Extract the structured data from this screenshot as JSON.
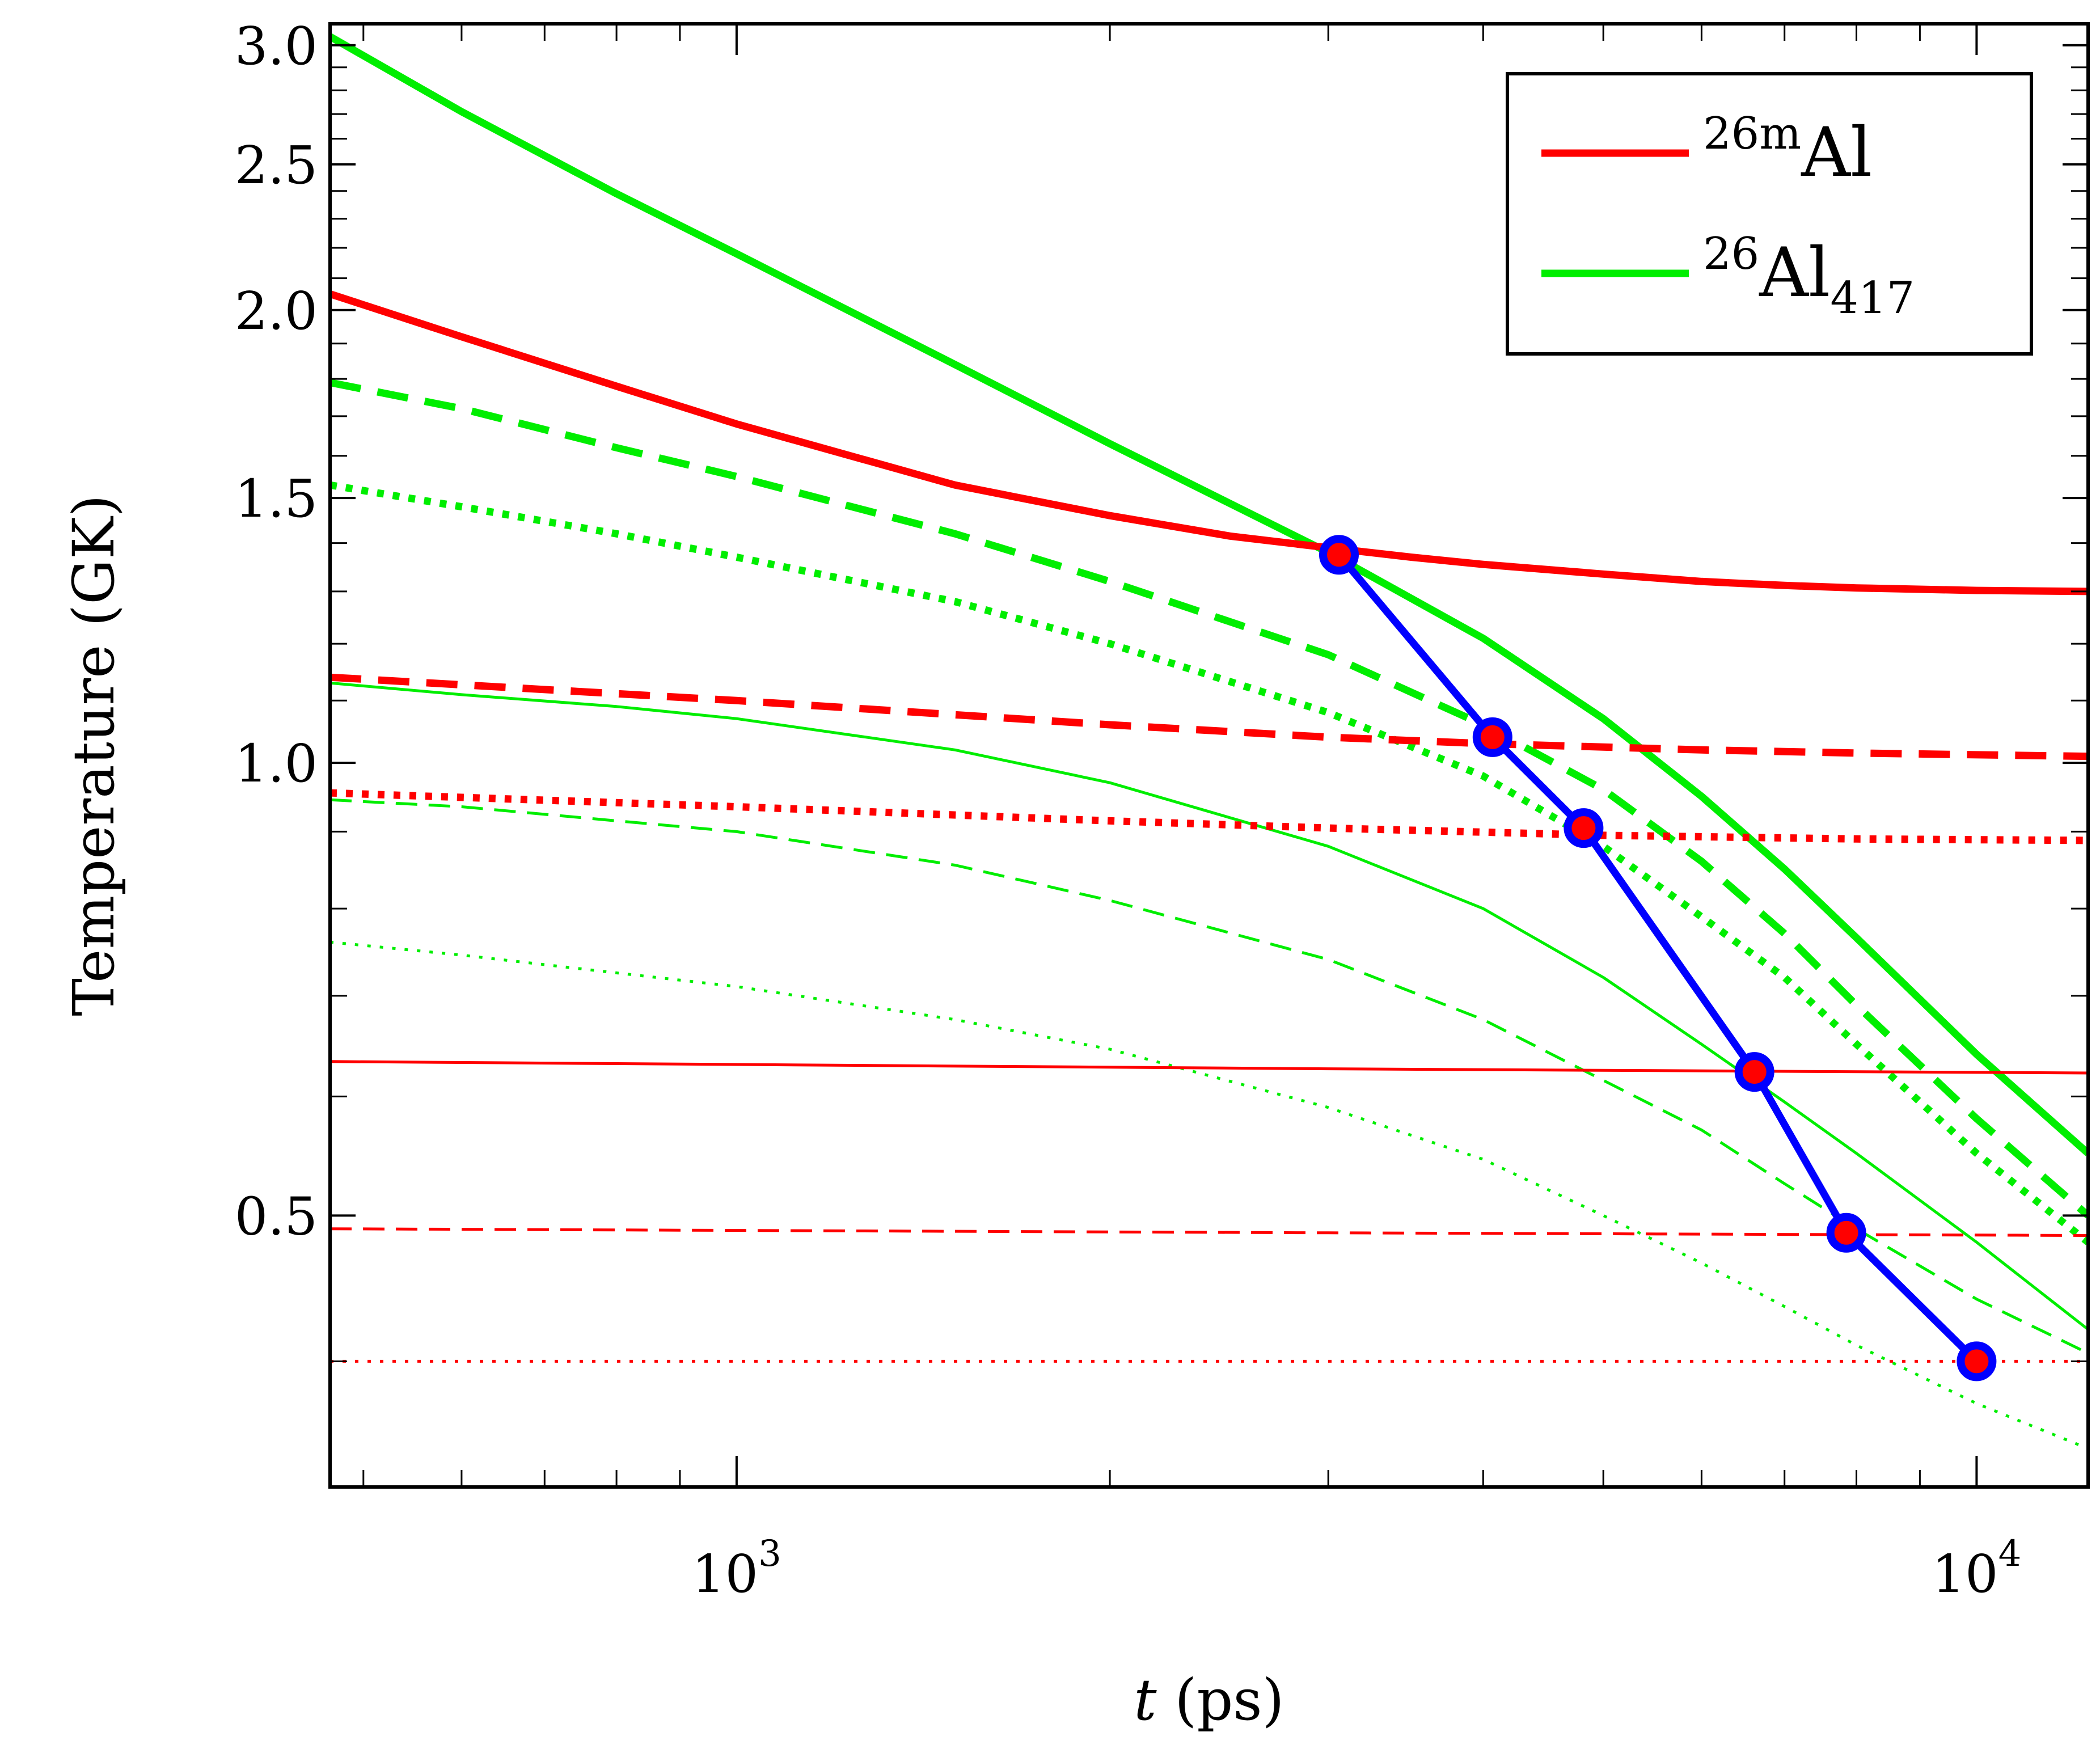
{
  "colors": {
    "red": "#ff0000",
    "green": "#00ee00",
    "blue": "#0000ff",
    "axis": "#000000"
  },
  "chart_data": {
    "type": "line",
    "xscale": "log",
    "yscale": "log",
    "xlim": [
      470,
      12300
    ],
    "ylim": [
      0.33,
      3.1
    ],
    "xlabel": {
      "var": "t",
      "unit": " (ps)"
    },
    "ylabel": "Temperature (GK)",
    "x_ticks": [
      {
        "value": 1000,
        "base": "10",
        "exp": "3"
      },
      {
        "value": 10000,
        "base": "10",
        "exp": "4"
      }
    ],
    "y_ticks": [
      {
        "value": 0.5,
        "label": "0.5"
      },
      {
        "value": 1.0,
        "label": "1.0"
      },
      {
        "value": 1.5,
        "label": "1.5"
      },
      {
        "value": 2.0,
        "label": "2.0"
      },
      {
        "value": 2.5,
        "label": "2.5"
      },
      {
        "value": 3.0,
        "label": "3.0"
      }
    ],
    "legend": {
      "position": "top-right",
      "entries": [
        {
          "series": "26mAl",
          "color": "#ff0000",
          "pre": "26m",
          "base": "Al",
          "sub": ""
        },
        {
          "series": "26Al417",
          "color": "#00ee00",
          "pre": "26",
          "base": "Al",
          "sub": "417"
        }
      ]
    },
    "series": [
      {
        "name": "26mAl-1",
        "color": "#ff0000",
        "style": "solid",
        "weight": "thick",
        "x": [
          470,
          600,
          800,
          1000,
          1500,
          2000,
          2500,
          3000,
          3500,
          4000,
          5000,
          6000,
          7000,
          8000,
          10000,
          12300
        ],
        "y": [
          2.05,
          1.92,
          1.78,
          1.68,
          1.53,
          1.46,
          1.415,
          1.39,
          1.37,
          1.355,
          1.335,
          1.32,
          1.312,
          1.307,
          1.302,
          1.3
        ]
      },
      {
        "name": "26mAl-2",
        "color": "#ff0000",
        "style": "dashed",
        "weight": "thick",
        "x": [
          470,
          1000,
          2000,
          3000,
          4000,
          6000,
          8000,
          12300
        ],
        "y": [
          1.14,
          1.1,
          1.06,
          1.04,
          1.03,
          1.02,
          1.015,
          1.01
        ]
      },
      {
        "name": "26mAl-3",
        "color": "#ff0000",
        "style": "dotted",
        "weight": "thick",
        "x": [
          470,
          1000,
          2000,
          3000,
          5000,
          8000,
          12300
        ],
        "y": [
          0.955,
          0.935,
          0.915,
          0.905,
          0.895,
          0.89,
          0.888
        ]
      },
      {
        "name": "26mAl-4",
        "color": "#ff0000",
        "style": "solid",
        "weight": "thin",
        "x": [
          470,
          3000,
          12300
        ],
        "y": [
          0.633,
          0.626,
          0.622
        ]
      },
      {
        "name": "26mAl-5",
        "color": "#ff0000",
        "style": "dashed",
        "weight": "thin",
        "x": [
          470,
          3000,
          12300
        ],
        "y": [
          0.49,
          0.487,
          0.485
        ]
      },
      {
        "name": "26mAl-6",
        "color": "#ff0000",
        "style": "dotted",
        "weight": "thin",
        "x": [
          470,
          12300
        ],
        "y": [
          0.4,
          0.4
        ]
      },
      {
        "name": "26Al417-1",
        "color": "#00ee00",
        "style": "solid",
        "weight": "thick",
        "x": [
          470,
          600,
          800,
          1000,
          1500,
          2000,
          3000,
          4000,
          5000,
          6000,
          7000,
          8000,
          10000,
          12300
        ],
        "y": [
          3.04,
          2.71,
          2.39,
          2.18,
          1.84,
          1.63,
          1.38,
          1.21,
          1.07,
          0.95,
          0.85,
          0.765,
          0.64,
          0.55
        ]
      },
      {
        "name": "26Al417-2",
        "color": "#00ee00",
        "style": "dashed",
        "weight": "thick",
        "x": [
          470,
          600,
          800,
          1000,
          1500,
          2000,
          3000,
          4000,
          5000,
          6000,
          7000,
          8000,
          10000,
          12300
        ],
        "y": [
          1.79,
          1.72,
          1.62,
          1.55,
          1.42,
          1.32,
          1.18,
          1.06,
          0.96,
          0.86,
          0.77,
          0.69,
          0.58,
          0.5
        ]
      },
      {
        "name": "26Al417-3",
        "color": "#00ee00",
        "style": "dotted",
        "weight": "thick",
        "x": [
          470,
          600,
          800,
          1000,
          1500,
          2000,
          3000,
          4000,
          5000,
          6000,
          7000,
          8000,
          10000,
          12300
        ],
        "y": [
          1.53,
          1.48,
          1.42,
          1.37,
          1.28,
          1.2,
          1.08,
          0.98,
          0.88,
          0.79,
          0.72,
          0.65,
          0.55,
          0.48
        ]
      },
      {
        "name": "26Al417-4",
        "color": "#00ee00",
        "style": "solid",
        "weight": "thin",
        "x": [
          470,
          600,
          800,
          1000,
          1500,
          2000,
          3000,
          4000,
          5000,
          6000,
          7000,
          8000,
          10000,
          12300
        ],
        "y": [
          1.13,
          1.11,
          1.09,
          1.07,
          1.02,
          0.97,
          0.88,
          0.8,
          0.72,
          0.65,
          0.595,
          0.55,
          0.48,
          0.42
        ]
      },
      {
        "name": "26Al417-5",
        "color": "#00ee00",
        "style": "dashed",
        "weight": "thin",
        "x": [
          470,
          600,
          800,
          1000,
          1500,
          2000,
          3000,
          4000,
          5000,
          6000,
          7000,
          8000,
          10000,
          12300
        ],
        "y": [
          0.945,
          0.935,
          0.915,
          0.9,
          0.855,
          0.81,
          0.74,
          0.675,
          0.615,
          0.57,
          0.525,
          0.49,
          0.44,
          0.405
        ]
      },
      {
        "name": "26Al417-6",
        "color": "#00ee00",
        "style": "dotted",
        "weight": "thin",
        "x": [
          470,
          600,
          800,
          1000,
          1500,
          2000,
          3000,
          4000,
          5000,
          6000,
          7000,
          8000,
          10000,
          12300
        ],
        "y": [
          0.76,
          0.745,
          0.725,
          0.71,
          0.675,
          0.645,
          0.59,
          0.545,
          0.5,
          0.465,
          0.435,
          0.41,
          0.375,
          0.35
        ]
      },
      {
        "name": "intersections",
        "color": "#0000ff",
        "style": "solid",
        "weight": "thick",
        "markers": true,
        "x": [
          3060,
          4070,
          4820,
          6620,
          7850,
          10000
        ],
        "y": [
          1.375,
          1.04,
          0.905,
          0.623,
          0.487,
          0.4
        ]
      }
    ]
  }
}
